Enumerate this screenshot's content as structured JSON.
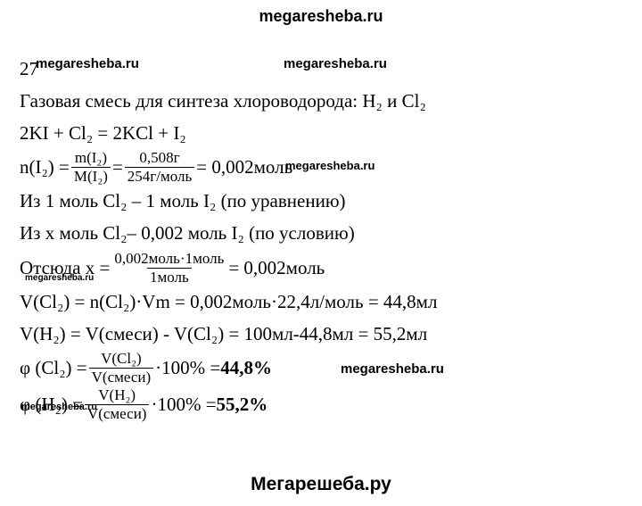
{
  "watermark": {
    "top": "megaresheba.ru",
    "bottom": "Мегарешеба.ру",
    "a": "megaresheba.ru",
    "b": "megaresheba.ru",
    "c": "megaresheba.ru",
    "d": "megaresheba.ru",
    "e": "megaresheba.ru",
    "f": "megaresheba.ru"
  },
  "task_number": "27",
  "line_intro": "Газовая смесь для синтеза хлороводорода: H₂ и Cl₂",
  "equation": "2KI + Cl₂ = 2KCl + I₂",
  "nI2": {
    "lhs": "n(I₂) = ",
    "f1_num": "m(I₂)",
    "f1_den": "M(I₂)",
    "eq1": " = ",
    "f2_num": "0,508г",
    "f2_den": "254г/моль",
    "rhs": " = 0,002моль"
  },
  "ratio1": "Из 1 моль Cl₂ – 1 моль I₂ (по уравнению)",
  "ratio2": "Из x моль Cl₂– 0,002 моль I₂ (по условию)",
  "xline": {
    "lhs": "Отсюда x = ",
    "num": "0,002моль·1моль",
    "den": "1моль",
    "rhs": " = 0,002моль"
  },
  "vcl2": "V(Cl₂) = n(Cl₂)·Vm = 0,002моль·22,4л/моль = 44,8мл",
  "vh2": "V(H₂) = V(смеси) - V(Cl₂) = 100мл-44,8мл = 55,2мл",
  "phi_cl2": {
    "lhs": "φ (Cl₂) = ",
    "num": "V(Cl₂)",
    "den": "V(смеси)",
    "mid": "·100% = ",
    "res": "44,8%"
  },
  "phi_h2": {
    "lhs": "φ (H₂) = ",
    "num": "V(H₂)",
    "den": "V(смеси)",
    "mid": "·100% = ",
    "res": "55,2%"
  }
}
